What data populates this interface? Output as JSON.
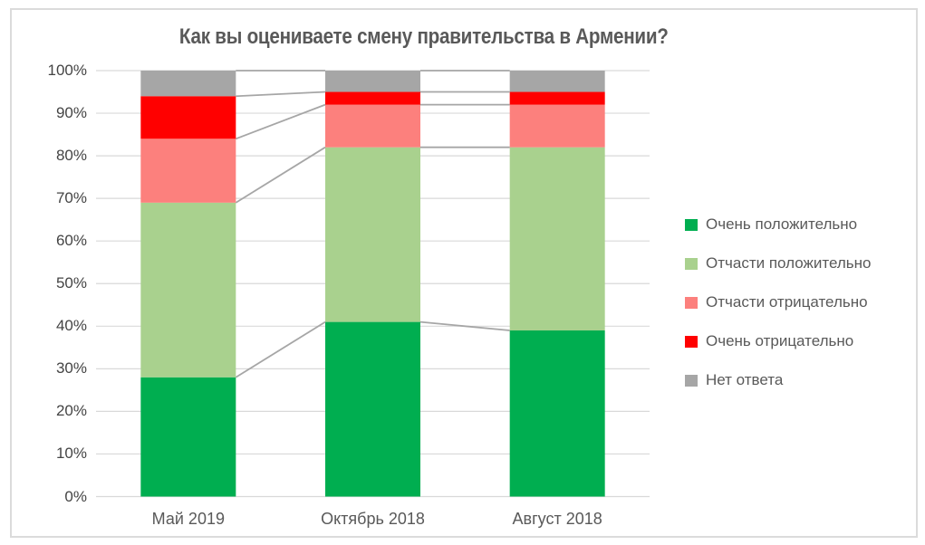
{
  "title": "Как вы оцениваете смену правительства в Армении?",
  "chart_data": {
    "type": "bar",
    "subtype": "stacked-100",
    "title": "Как вы оцениваете смену правительства в Армении?",
    "categories": [
      "Май 2019",
      "Октябрь 2018",
      "Август 2018"
    ],
    "series": [
      {
        "name": "Очень положительно",
        "color": "#00AE50",
        "values": [
          28,
          41,
          39
        ]
      },
      {
        "name": "Отчасти положительно",
        "color": "#A9D18E",
        "values": [
          41,
          41,
          43
        ]
      },
      {
        "name": "Отчасти отрицательно",
        "color": "#FC807D",
        "values": [
          15,
          10,
          10
        ]
      },
      {
        "name": "Очень отрицательно",
        "color": "#FF0000",
        "values": [
          10,
          3,
          3
        ]
      },
      {
        "name": "Нет ответа",
        "color": "#A6A6A6",
        "values": [
          6,
          5,
          5
        ]
      }
    ],
    "y_tick_labels": [
      "0%",
      "10%",
      "20%",
      "30%",
      "40%",
      "50%",
      "60%",
      "70%",
      "80%",
      "90%",
      "100%"
    ],
    "y_axis": {
      "min": 0,
      "max": 100,
      "step": 10,
      "unit": "%"
    },
    "xlabel": "",
    "ylabel": "",
    "grid": true,
    "legend_position": "right",
    "connector_lines": true,
    "colors": {
      "gridline": "#D9D9D9",
      "connector": "#A6A6A6",
      "title_text": "#595959",
      "tick_text": "#444444",
      "frame_border": "#DBDBDB"
    }
  }
}
